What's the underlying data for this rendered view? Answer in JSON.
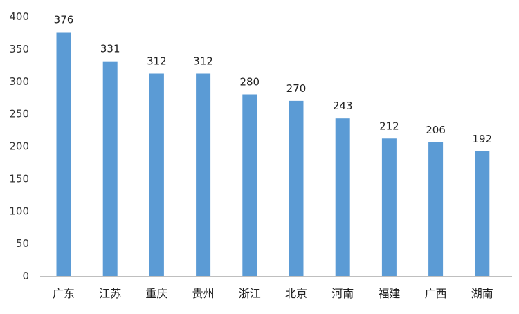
{
  "chart_data": {
    "type": "bar",
    "categories": [
      "广东",
      "江苏",
      "重庆",
      "贵州",
      "浙江",
      "北京",
      "河南",
      "福建",
      "广西",
      "湖南"
    ],
    "values": [
      376,
      331,
      312,
      312,
      280,
      270,
      243,
      212,
      206,
      192
    ],
    "data_labels": [
      "376",
      "331",
      "312",
      "312",
      "280",
      "270",
      "243",
      "212",
      "206",
      "192"
    ],
    "y_ticks": [
      "0",
      "50",
      "100",
      "150",
      "200",
      "250",
      "300",
      "350",
      "400"
    ],
    "ylim": [
      0,
      400
    ],
    "grid": false,
    "legend": "none",
    "bar_color": "#5B9BD5",
    "axis_color": "#BFBFBF"
  }
}
